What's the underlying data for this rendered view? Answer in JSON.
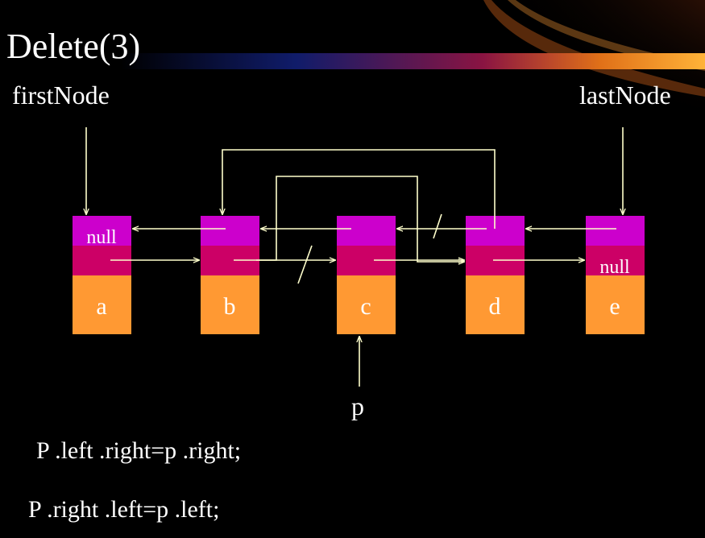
{
  "slide": {
    "title": "Delete(3)",
    "first_pointer": "firstNode",
    "last_pointer": "lastNode",
    "p_pointer": "p",
    "code_lines": [
      "P .left .right=p .right;",
      "P .right .left=p .left;"
    ]
  },
  "nodes": [
    {
      "id": "a",
      "value": "a",
      "left_text": "null",
      "right_text": ""
    },
    {
      "id": "b",
      "value": "b",
      "left_text": "",
      "right_text": ""
    },
    {
      "id": "c",
      "value": "c",
      "left_text": "",
      "right_text": ""
    },
    {
      "id": "d",
      "value": "d",
      "left_text": "",
      "right_text": ""
    },
    {
      "id": "e",
      "value": "e",
      "left_text": "",
      "right_text": "null"
    }
  ],
  "colors": {
    "background": "#000000",
    "left_field": "#cc00cc",
    "right_field": "#cc0066",
    "data_field": "#ff9933",
    "arrow": "#ffffcc",
    "text": "#ffffff"
  }
}
